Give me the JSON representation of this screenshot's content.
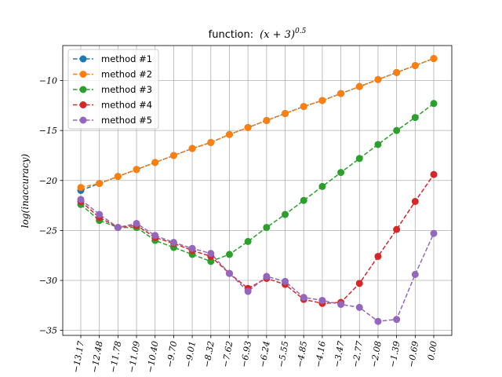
{
  "chart_data": {
    "type": "line",
    "title_prefix": "function:",
    "title_math": "(x + 3)",
    "title_exponent": "0.5",
    "xlabel": "",
    "ylabel": "log(inaccuracy)",
    "x_tick_labels": [
      "−13.17",
      "−12.48",
      "−11.78",
      "−11.09",
      "−10.40",
      "−9.70",
      "−9.01",
      "−8.32",
      "−7.62",
      "−6.93",
      "−6.24",
      "−5.55",
      "−4.85",
      "−4.16",
      "−3.47",
      "−2.77",
      "−2.08",
      "−1.39",
      "−0.69",
      "0.00"
    ],
    "x": [
      -13.17,
      -12.48,
      -11.78,
      -11.09,
      -10.4,
      -9.7,
      -9.01,
      -8.32,
      -7.62,
      -6.93,
      -6.24,
      -5.55,
      -4.85,
      -4.16,
      -3.47,
      -2.77,
      -2.08,
      -1.39,
      -0.69,
      0.0
    ],
    "y_ticks": [
      -35,
      -30,
      -25,
      -20,
      -15,
      -10
    ],
    "ylim": [
      -35.5,
      -6.5
    ],
    "grid": true,
    "legend_position": "upper-left",
    "series": [
      {
        "name": "method #1",
        "color": "#1f77b4",
        "values": [
          -21.0,
          -20.3,
          -19.6,
          -18.9,
          -18.2,
          -17.5,
          -16.8,
          -16.2,
          -15.4,
          -14.7,
          -14.0,
          -13.3,
          -12.6,
          -12.0,
          -11.3,
          -10.6,
          -9.9,
          -9.2,
          -8.5,
          -7.8
        ]
      },
      {
        "name": "method #2",
        "color": "#ff7f0e",
        "values": [
          -20.7,
          -20.3,
          -19.6,
          -18.9,
          -18.2,
          -17.5,
          -16.8,
          -16.2,
          -15.4,
          -14.7,
          -14.0,
          -13.3,
          -12.6,
          -12.0,
          -11.3,
          -10.6,
          -9.9,
          -9.2,
          -8.5,
          -7.8
        ]
      },
      {
        "name": "method #3",
        "color": "#2ca02c",
        "values": [
          -22.4,
          -24.0,
          -24.7,
          -24.7,
          -26.0,
          -26.7,
          -27.4,
          -28.1,
          -27.4,
          -26.1,
          -24.7,
          -23.4,
          -22.0,
          -20.6,
          -19.2,
          -17.8,
          -16.4,
          -15.0,
          -13.7,
          -12.3
        ]
      },
      {
        "name": "method #4",
        "color": "#d62728",
        "values": [
          -22.1,
          -23.7,
          -24.7,
          -24.5,
          -25.7,
          -26.3,
          -27.0,
          -27.6,
          -29.3,
          -30.8,
          -29.8,
          -30.4,
          -31.9,
          -32.3,
          -32.2,
          -30.3,
          -27.6,
          -24.9,
          -22.1,
          -19.4
        ]
      },
      {
        "name": "method #5",
        "color": "#9467bd",
        "values": [
          -21.9,
          -23.4,
          -24.7,
          -24.3,
          -25.5,
          -26.2,
          -26.8,
          -27.3,
          -29.3,
          -31.1,
          -29.6,
          -30.1,
          -31.7,
          -32.0,
          -32.4,
          -32.7,
          -34.1,
          -33.9,
          -29.4,
          -25.3
        ]
      }
    ]
  }
}
